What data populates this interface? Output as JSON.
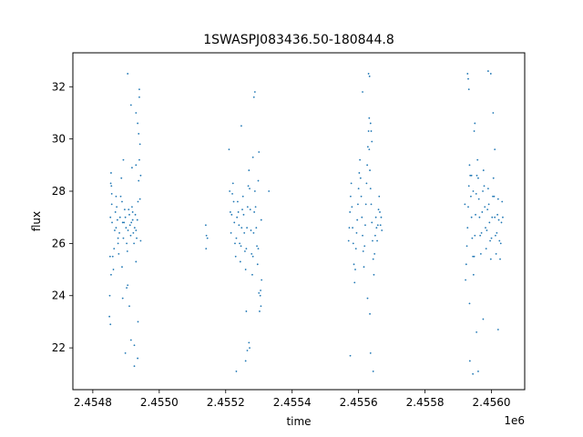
{
  "chart_data": {
    "type": "scatter",
    "title": "1SWASPJ083436.50-180844.8",
    "xlabel": "time",
    "ylabel": "flux",
    "x_offset_label": "1e6",
    "xlim": [
      2454740,
      2456100
    ],
    "ylim": [
      20.4,
      33.3
    ],
    "x_ticks": [
      2454800,
      2455000,
      2455200,
      2455400,
      2455600,
      2455800,
      2456000
    ],
    "x_tick_labels": [
      "2.4548",
      "2.4550",
      "2.4552",
      "2.4554",
      "2.4556",
      "2.4558",
      "2.4560"
    ],
    "y_ticks": [
      22,
      24,
      26,
      28,
      30,
      32
    ],
    "y_tick_labels": [
      "22",
      "24",
      "26",
      "28",
      "30",
      "32"
    ],
    "grid": false,
    "marker_color": "#1f77b4",
    "series": [
      {
        "x": [
          2454850,
          2454851,
          2454852,
          2454853,
          2454854,
          2454855,
          2454856,
          2454857,
          2454858,
          2454860,
          2454862,
          2454864,
          2454866,
          2454868,
          2454870,
          2454872,
          2454874,
          2454876,
          2454878,
          2454880,
          2454882,
          2454884,
          2454886,
          2454888,
          2454890,
          2454892,
          2454894,
          2454896,
          2454898,
          2454900,
          2454902,
          2454904,
          2454906,
          2454908,
          2454910,
          2454912,
          2454914,
          2454916,
          2454918,
          2454920,
          2454922,
          2454924,
          2454926,
          2454928,
          2454930,
          2454932,
          2454934,
          2454936,
          2454938,
          2454940,
          2454942,
          2454944,
          2454853,
          2454855,
          2454857,
          2454870,
          2454890,
          2454905,
          2454915,
          2454925,
          2454935,
          2454940,
          2454905,
          2454915,
          2454930,
          2454935,
          2454938,
          2454892,
          2454925,
          2454902,
          2454918,
          2454930,
          2454940,
          2454942,
          2454944,
          2454910,
          2454930,
          2454876,
          2454888,
          2454920,
          2454936,
          2454898
        ],
        "y": [
          23.2,
          24.0,
          25.5,
          27.0,
          28.3,
          28.7,
          28.2,
          27.5,
          26.8,
          25.5,
          25.0,
          25.8,
          26.5,
          27.2,
          27.8,
          27.4,
          26.9,
          26.0,
          25.6,
          26.4,
          27.0,
          27.8,
          28.5,
          27.6,
          26.8,
          26.2,
          26.8,
          27.3,
          27.0,
          26.6,
          26.0,
          25.7,
          26.5,
          27.3,
          27.1,
          26.7,
          26.3,
          26.8,
          27.4,
          26.9,
          26.4,
          26.0,
          26.6,
          27.1,
          26.5,
          26.2,
          26.9,
          27.6,
          28.4,
          29.2,
          29.8,
          28.6,
          22.9,
          24.8,
          27.9,
          26.6,
          23.9,
          24.4,
          22.3,
          22.1,
          21.6,
          31.6,
          32.5,
          31.3,
          31.0,
          30.6,
          30.2,
          29.2,
          21.3,
          24.3,
          28.9,
          29.0,
          31.9,
          27.7,
          26.1,
          23.6,
          25.3,
          26.2,
          25.1,
          27.2,
          23.0,
          21.8
        ]
      },
      {
        "x": [
          2455140,
          2455142,
          2455141,
          2455145
        ],
        "y": [
          26.7,
          26.3,
          25.8,
          26.2
        ]
      },
      {
        "x": [
          2455210,
          2455212,
          2455214,
          2455216,
          2455218,
          2455220,
          2455222,
          2455224,
          2455226,
          2455228,
          2455230,
          2455232,
          2455234,
          2455236,
          2455238,
          2455240,
          2455242,
          2455244,
          2455246,
          2455248,
          2455250,
          2455252,
          2455254,
          2455256,
          2455258,
          2455260,
          2455262,
          2455264,
          2455266,
          2455268,
          2455270,
          2455272,
          2455274,
          2455276,
          2455278,
          2455280,
          2455282,
          2455284,
          2455286,
          2455288,
          2455290,
          2455292,
          2455294,
          2455296,
          2455298,
          2455300,
          2455302,
          2455304,
          2455306,
          2455308,
          2455285,
          2455288,
          2455270,
          2455272,
          2455232,
          2455247,
          2455262,
          2455305,
          2455307,
          2455300,
          2455282,
          2455298,
          2455265,
          2455260,
          2455330
        ],
        "y": [
          29.6,
          28.0,
          27.2,
          26.4,
          27.1,
          27.9,
          28.3,
          27.6,
          26.8,
          26.0,
          25.5,
          26.2,
          27.0,
          27.6,
          27.2,
          26.7,
          26.0,
          25.3,
          25.9,
          26.6,
          27.3,
          27.8,
          27.1,
          26.4,
          25.7,
          25.0,
          25.8,
          26.6,
          27.4,
          28.2,
          28.8,
          28.1,
          27.3,
          26.5,
          25.6,
          24.8,
          25.5,
          26.4,
          27.2,
          28.0,
          27.4,
          26.6,
          25.9,
          25.2,
          25.8,
          24.1,
          23.4,
          24.0,
          23.6,
          24.6,
          31.6,
          31.8,
          22.2,
          22.0,
          21.1,
          30.5,
          23.4,
          24.2,
          26.9,
          29.5,
          29.3,
          28.4,
          21.9,
          21.5,
          28.0
        ]
      },
      {
        "x": [
          2455570,
          2455572,
          2455574,
          2455576,
          2455578,
          2455580,
          2455582,
          2455584,
          2455586,
          2455588,
          2455590,
          2455592,
          2455594,
          2455596,
          2455598,
          2455600,
          2455602,
          2455604,
          2455606,
          2455608,
          2455610,
          2455612,
          2455614,
          2455616,
          2455618,
          2455620,
          2455622,
          2455624,
          2455626,
          2455628,
          2455630,
          2455632,
          2455634,
          2455636,
          2455638,
          2455640,
          2455642,
          2455644,
          2455646,
          2455648,
          2455650,
          2455652,
          2455654,
          2455656,
          2455658,
          2455660,
          2455662,
          2455664,
          2455666,
          2455668,
          2455670,
          2455630,
          2455633,
          2455636,
          2455632,
          2455638,
          2455612,
          2455640,
          2455575,
          2455636,
          2455644,
          2455634,
          2455627
        ],
        "y": [
          26.1,
          26.6,
          27.2,
          27.8,
          28.3,
          27.4,
          26.6,
          26.0,
          25.2,
          24.5,
          25.0,
          25.8,
          26.4,
          26.9,
          27.5,
          28.1,
          28.7,
          29.2,
          28.5,
          27.8,
          27.0,
          26.3,
          25.7,
          25.1,
          25.9,
          26.7,
          27.5,
          28.3,
          29.0,
          29.7,
          30.3,
          29.6,
          28.8,
          28.1,
          27.5,
          26.8,
          26.1,
          25.4,
          24.8,
          25.6,
          26.3,
          27.0,
          26.6,
          26.1,
          26.7,
          27.3,
          27.8,
          27.2,
          26.7,
          27.0,
          26.5,
          32.5,
          32.4,
          30.6,
          30.8,
          30.3,
          31.8,
          29.9,
          21.7,
          21.8,
          21.1,
          23.3,
          23.9
        ]
      },
      {
        "x": [
          2455920,
          2455922,
          2455924,
          2455926,
          2455928,
          2455930,
          2455932,
          2455934,
          2455936,
          2455938,
          2455940,
          2455942,
          2455944,
          2455946,
          2455948,
          2455950,
          2455952,
          2455954,
          2455956,
          2455958,
          2455960,
          2455962,
          2455964,
          2455966,
          2455968,
          2455970,
          2455972,
          2455974,
          2455976,
          2455978,
          2455980,
          2455982,
          2455984,
          2455986,
          2455988,
          2455990,
          2455992,
          2455994,
          2455996,
          2455998,
          2456000,
          2456002,
          2456004,
          2456006,
          2456008,
          2456010,
          2456012,
          2456014,
          2456016,
          2456018,
          2456020,
          2456022,
          2456024,
          2456026,
          2456028,
          2456030,
          2456032,
          2456034,
          2455928,
          2455930,
          2455932,
          2455948,
          2455950,
          2455990,
          2455998,
          2456005,
          2456010,
          2455940,
          2455945,
          2455935,
          2455955,
          2455934,
          2455960,
          2456020,
          2455975,
          2455944
        ],
        "y": [
          27.5,
          24.6,
          25.2,
          25.9,
          26.6,
          27.4,
          28.2,
          29.0,
          28.6,
          27.8,
          27.0,
          26.2,
          25.5,
          24.8,
          25.5,
          26.3,
          27.1,
          27.9,
          28.6,
          29.2,
          28.5,
          27.7,
          27.0,
          26.3,
          25.6,
          26.4,
          27.2,
          28.0,
          28.8,
          28.2,
          27.4,
          26.6,
          25.8,
          26.5,
          27.3,
          28.1,
          27.5,
          26.8,
          26.1,
          25.4,
          26.2,
          27.0,
          27.8,
          28.5,
          27.8,
          27.0,
          26.3,
          25.6,
          26.4,
          27.1,
          27.7,
          26.9,
          26.1,
          25.4,
          26.0,
          26.8,
          27.6,
          27.0,
          32.5,
          32.3,
          31.9,
          30.3,
          30.6,
          32.6,
          32.5,
          31.0,
          29.6,
          28.6,
          28.0,
          21.5,
          22.6,
          23.7,
          21.1,
          22.7,
          23.1,
          21.0
        ]
      }
    ]
  }
}
